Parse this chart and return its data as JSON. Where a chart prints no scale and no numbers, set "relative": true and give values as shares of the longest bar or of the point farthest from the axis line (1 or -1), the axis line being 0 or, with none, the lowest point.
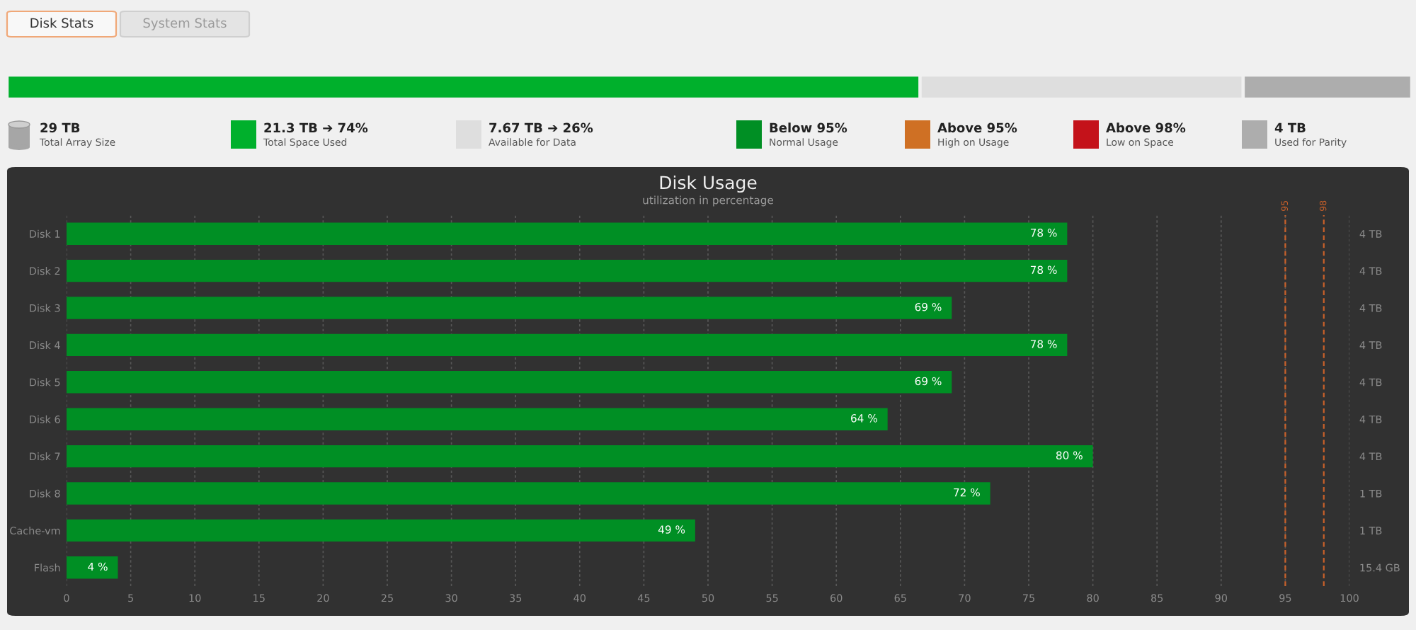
{
  "chart_data": [
    {
      "type": "bar",
      "orientation": "horizontal",
      "stacked": true,
      "relative": true,
      "categories": [
        null
      ],
      "series": [
        {
          "name": "21.3 TB ➔ 74%\nTotal Space Used",
          "color": "#00b02c",
          "values": [
            0.65
          ]
        },
        {
          "name": "7.67 TB ➔ 26%\nAvailable for Data",
          "color": "#dedede",
          "values": [
            0.23
          ]
        },
        {
          "name": "4 TB\nUsed for Parity",
          "color": "#adadad",
          "values": [
            0.12
          ]
        }
      ],
      "annotations": [
        "Disk Stats",
        "System Stats",
        "29 TB\nTotal Array Size"
      ],
      "legend": "bottom"
    },
    {
      "type": "bar",
      "orientation": "horizontal",
      "title": "Disk Usage",
      "subtitle": "utilization in percentage",
      "categories": [
        "Disk 1",
        "Disk 2",
        "Disk 3",
        "Disk 4",
        "Disk 5",
        "Disk 6",
        "Disk 7",
        "Disk 8",
        "Cache-vm",
        "Flash"
      ],
      "y2_categories": [
        "4 TB",
        "4 TB",
        "4 TB",
        "4 TB",
        "4 TB",
        "4 TB",
        "4 TB",
        "1 TB",
        "1 TB",
        "15.4 GB"
      ],
      "series": [
        {
          "name": "Below 95%\nNormal Usage",
          "color": "#008f24",
          "values": [
            78,
            78,
            69,
            78,
            69,
            64,
            80,
            72,
            49,
            4
          ],
          "value_labels": [
            "78 %",
            "78 %",
            "69 %",
            "78 %",
            "69 %",
            "64 %",
            "80 %",
            "72 %",
            "49 %",
            "4 %"
          ]
        },
        {
          "name": "Above 95%\nHigh on Usage",
          "color": "#cf7024",
          "values": [
            null,
            null,
            null,
            null,
            null,
            null,
            null,
            null,
            null,
            null
          ]
        },
        {
          "name": "Above 98%\nLow on Space",
          "color": "#c4121a",
          "values": [
            null,
            null,
            null,
            null,
            null,
            null,
            null,
            null,
            null,
            null
          ]
        }
      ],
      "xlim": [
        0,
        100
      ],
      "xticks": [
        0,
        5,
        10,
        15,
        20,
        25,
        30,
        35,
        40,
        45,
        50,
        55,
        60,
        65,
        70,
        75,
        80,
        85,
        90,
        95,
        100
      ],
      "grid": "x",
      "ref_lines": [
        {
          "axis": "x",
          "value": 95,
          "label": "95",
          "color": "#c8602a",
          "line_style": "dashed"
        },
        {
          "axis": "x",
          "value": 98,
          "label": "98",
          "color": "#c8602a",
          "line_style": "dashed"
        }
      ],
      "legend": "top"
    }
  ]
}
